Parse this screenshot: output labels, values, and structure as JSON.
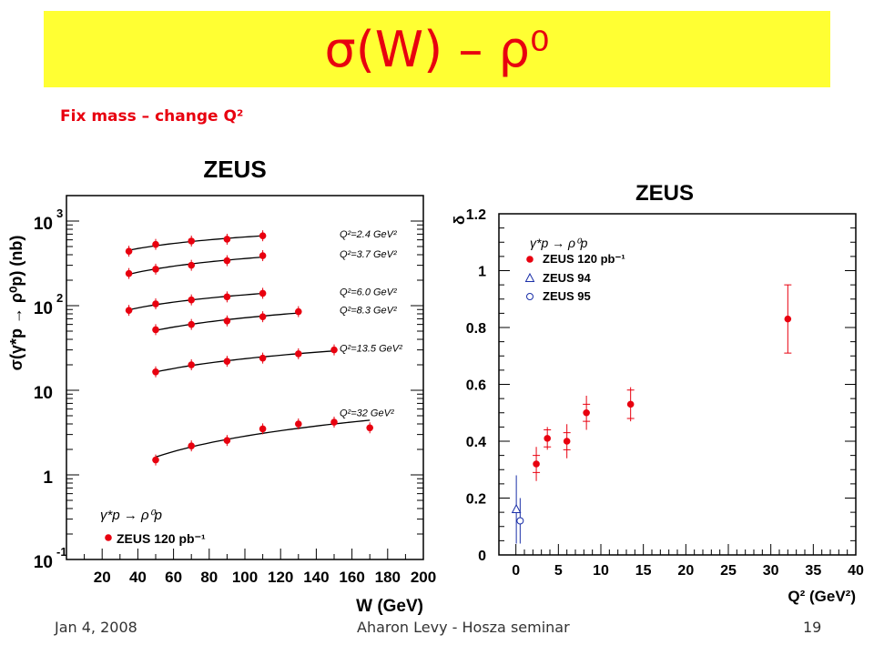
{
  "slide": {
    "title": "σ(W) – ρ⁰",
    "subtitle": "Fix mass – change Q²",
    "footer_left": "Jan 4, 2008",
    "footer_center": "Aharon Levy - Hosza seminar",
    "footer_right": "19",
    "colors": {
      "banner": "#ffff33",
      "title": "#e8000f",
      "points": "#e8000f",
      "h1_points": "#1a2fa8"
    }
  },
  "chart_data": [
    {
      "type": "scatter",
      "title": "ZEUS",
      "xlabel": "W (GeV)",
      "ylabel": "σ(γ*p → ρ⁰p) (nb)",
      "log_y": true,
      "xlim": [
        0,
        200
      ],
      "ylim": [
        0.1,
        2000
      ],
      "x_ticks": [
        "20",
        "40",
        "60",
        "80",
        "100",
        "120",
        "140",
        "160",
        "180",
        "200"
      ],
      "y_ticks": [
        {
          "base": "10",
          "exp": "-1",
          "value": 0.1
        },
        {
          "base": "1",
          "exp": "",
          "value": 1
        },
        {
          "base": "10",
          "exp": "",
          "value": 10
        },
        {
          "base": "10",
          "exp": "2",
          "value": 100
        },
        {
          "base": "10",
          "exp": "3",
          "value": 1000
        }
      ],
      "legend_title": "γ*p → ρ⁰p",
      "legend_entry": "ZEUS 120 pb⁻¹",
      "series": [
        {
          "label": "Q²=2.4 GeV²",
          "x": [
            35,
            50,
            70,
            90,
            110
          ],
          "y": [
            440,
            530,
            580,
            610,
            670
          ]
        },
        {
          "label": "Q²=3.7 GeV²",
          "x": [
            35,
            50,
            70,
            90,
            110
          ],
          "y": [
            240,
            270,
            300,
            340,
            390
          ]
        },
        {
          "label": "Q²=6.0 GeV²",
          "x": [
            35,
            50,
            70,
            90,
            110
          ],
          "y": [
            88,
            105,
            117,
            127,
            140
          ]
        },
        {
          "label": "Q²=8.3 GeV²",
          "x": [
            50,
            70,
            90,
            110,
            130
          ],
          "y": [
            52,
            60,
            66,
            74,
            85
          ]
        },
        {
          "label": "Q²=13.5 GeV²",
          "x": [
            50,
            70,
            90,
            110,
            130,
            150
          ],
          "y": [
            16.5,
            20,
            22,
            24,
            27,
            30
          ]
        },
        {
          "label": "Q²=32 GeV²",
          "x": [
            50,
            70,
            90,
            110,
            130,
            150,
            170
          ],
          "y": [
            1.5,
            2.2,
            2.55,
            3.5,
            4.0,
            4.2,
            3.6
          ]
        }
      ]
    },
    {
      "type": "scatter",
      "title": "ZEUS",
      "xlabel": "Q² (GeV²)",
      "ylabel": "δ",
      "xlim": [
        -2,
        40
      ],
      "ylim": [
        0,
        1.2
      ],
      "x_ticks": [
        "0",
        "5",
        "10",
        "15",
        "20",
        "25",
        "30",
        "35",
        "40"
      ],
      "y_ticks": [
        "0",
        "0.2",
        "0.4",
        "0.6",
        "0.8",
        "1",
        "1.2"
      ],
      "legend_title": "γ*p → ρ⁰p",
      "series": [
        {
          "name": "ZEUS 120 pb⁻¹",
          "marker": "filled-circle",
          "x": [
            2.4,
            3.7,
            6.0,
            8.3,
            13.5,
            32
          ],
          "y": [
            0.32,
            0.41,
            0.4,
            0.5,
            0.53,
            0.83
          ],
          "err_stat": [
            0.03,
            0.03,
            0.03,
            0.03,
            0.05,
            0.12
          ],
          "err_tot": [
            0.06,
            0.04,
            0.06,
            0.06,
            0.06,
            0.12
          ]
        },
        {
          "name": "ZEUS 94",
          "marker": "open-triangle",
          "x": [
            0.05
          ],
          "y": [
            0.16
          ],
          "err_tot": [
            0.12
          ]
        },
        {
          "name": "ZEUS 95",
          "marker": "open-circle",
          "x": [
            0.5
          ],
          "y": [
            0.12
          ],
          "err_tot": [
            0.08
          ]
        }
      ]
    }
  ]
}
